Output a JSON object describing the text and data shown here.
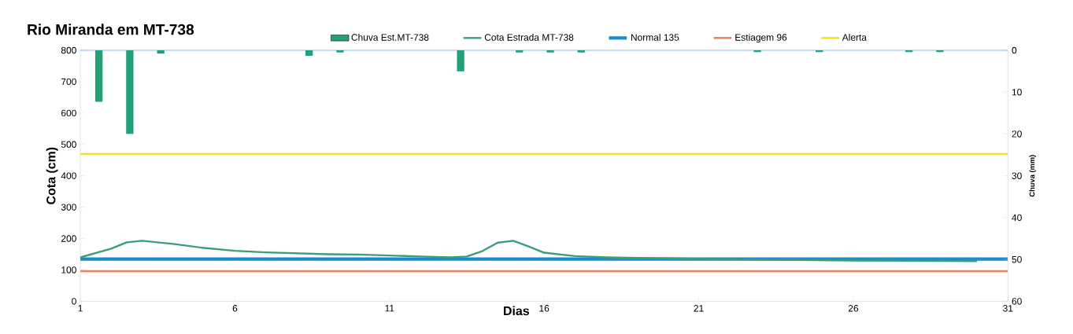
{
  "chart_data": {
    "type": "line",
    "title": "Rio Miranda em MT-738",
    "xlabel": "Dias",
    "ylabel": "Cota  (cm)",
    "y2label": "Chuva (mm)",
    "xlim": [
      1,
      31
    ],
    "xticks": [
      1,
      6,
      11,
      16,
      21,
      26,
      31
    ],
    "ylim": [
      0,
      800
    ],
    "yticks": [
      0,
      100,
      200,
      300,
      400,
      500,
      600,
      700,
      800
    ],
    "y2lim": [
      60,
      0
    ],
    "y2ticks": [
      0,
      10,
      20,
      30,
      40,
      50,
      60
    ],
    "legend": "top",
    "grid": false,
    "series": [
      {
        "name": "Chuva Est.MT-738",
        "type": "bar",
        "axis": "y2",
        "color": "#22a07a",
        "x": [
          1.6,
          2.6,
          3.6,
          8.4,
          9.4,
          13.3,
          15.2,
          16.2,
          17.2,
          22.9,
          24.9,
          27.8,
          28.8
        ],
        "values": [
          12.3,
          20,
          0.8,
          1.3,
          0.5,
          5,
          0.5,
          0.5,
          0.5,
          0.4,
          0.4,
          0.4,
          0.4
        ]
      },
      {
        "name": "Cota Estrada MT-738",
        "color": "#3a9e78",
        "x": [
          1,
          2,
          2.5,
          3,
          4,
          5,
          6,
          7,
          8,
          9,
          10,
          11,
          12,
          13,
          13.5,
          14,
          14.5,
          15,
          15.5,
          16,
          17,
          18,
          19,
          20,
          22,
          24,
          26,
          28,
          30
        ],
        "values": [
          140,
          168,
          188,
          193,
          183,
          170,
          161,
          156,
          153,
          150,
          149,
          146,
          143,
          140,
          143,
          160,
          187,
          193,
          175,
          155,
          144,
          140,
          138,
          137,
          134,
          132,
          130,
          129,
          128
        ]
      },
      {
        "name": "Normal 135",
        "color": "#1b8ec9",
        "x": [
          1,
          31
        ],
        "values": [
          135,
          135
        ]
      },
      {
        "name": "Estiagem 96",
        "color": "#e9875c",
        "x": [
          1,
          31
        ],
        "values": [
          96,
          96
        ]
      },
      {
        "name": "Alerta",
        "color": "#f0e000",
        "x": [
          1,
          31
        ],
        "values": [
          470,
          470
        ]
      }
    ]
  }
}
